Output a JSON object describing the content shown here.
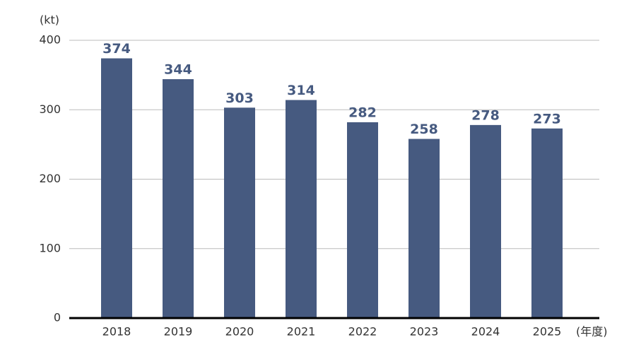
{
  "chart_data": {
    "type": "bar",
    "y_label": "(kt)",
    "x_label": "(年度)",
    "categories": [
      "2018",
      "2019",
      "2020",
      "2021",
      "2022",
      "2023",
      "2024",
      "2025"
    ],
    "values": [
      374,
      344,
      303,
      314,
      282,
      258,
      278,
      273
    ],
    "color": "#465a80",
    "ylim": [
      0,
      400
    ],
    "yticks": [
      0,
      100,
      200,
      300,
      400
    ],
    "grid": true
  }
}
